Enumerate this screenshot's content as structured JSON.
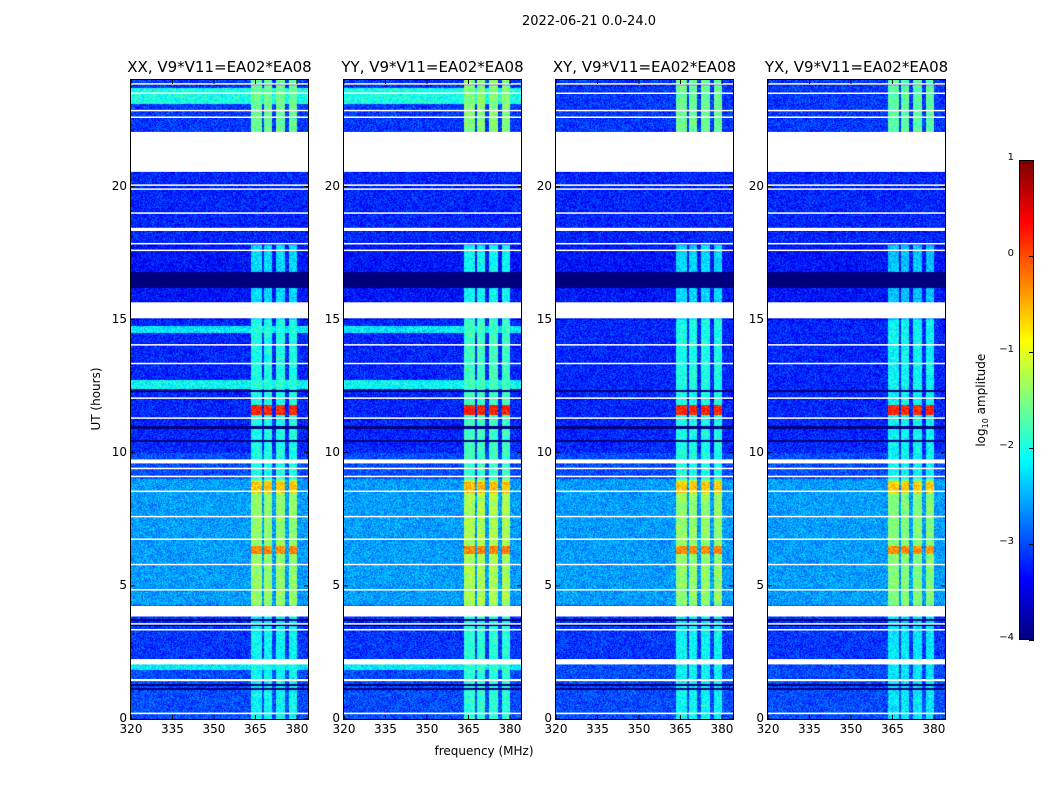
{
  "chart_data": {
    "type": "heatmap",
    "title": "2022-06-21 0.0-24.0",
    "xlabel": "frequency (MHz)",
    "ylabel": "UT (hours)",
    "xlim": [
      320,
      384
    ],
    "ylim": [
      0,
      24
    ],
    "xticks": [
      320,
      335,
      350,
      365,
      380
    ],
    "yticks": [
      0,
      5,
      10,
      15,
      20
    ],
    "panels": [
      {
        "title": "XX, V9*V11=EA02*EA08",
        "rfi_gain": 1.0,
        "parallel_hand": true
      },
      {
        "title": "YY, V9*V11=EA02*EA08",
        "rfi_gain": 1.1,
        "parallel_hand": true
      },
      {
        "title": "XY, V9*V11=EA02*EA08",
        "rfi_gain": 1.0,
        "parallel_hand": false
      },
      {
        "title": "YX, V9*V11=EA02*EA08",
        "rfi_gain": 0.95,
        "parallel_hand": false
      }
    ],
    "colorbar": {
      "label_main": "log",
      "label_sub": "10",
      "label_rest": " amplitude",
      "colormap": "jet",
      "range": [
        -4,
        1
      ],
      "ticks": [
        1,
        0,
        -1,
        -2,
        -3,
        -4
      ]
    },
    "background_log_amplitude": [
      {
        "hours": [
          0,
          2.2
        ],
        "value": -3.0
      },
      {
        "hours": [
          2.2,
          4.3
        ],
        "value": -3.1
      },
      {
        "hours": [
          4.3,
          9.0
        ],
        "value": -2.6
      },
      {
        "hours": [
          9.0,
          10.0
        ],
        "value": -3.0
      },
      {
        "hours": [
          10.0,
          15.0
        ],
        "value": -3.2
      },
      {
        "hours": [
          15.0,
          17.8
        ],
        "value": -3.3
      },
      {
        "hours": [
          17.8,
          20.6
        ],
        "value": -3.2
      },
      {
        "hours": [
          20.6,
          24
        ],
        "value": -3.1
      }
    ],
    "parallel_hand_bright_rows": [
      {
        "hours": [
          1.85,
          2.05
        ],
        "value": -2.2
      },
      {
        "hours": [
          12.4,
          12.75
        ],
        "value": -2.1
      },
      {
        "hours": [
          14.5,
          14.75
        ],
        "value": -2.2
      },
      {
        "hours": [
          23.1,
          23.7
        ],
        "value": -2.0
      }
    ],
    "dark_rows_hours": [
      [
        1.08,
        1.15
      ],
      [
        1.25,
        1.3
      ],
      [
        3.48,
        3.55
      ],
      [
        3.68,
        3.75
      ],
      [
        10.4,
        10.48
      ],
      [
        10.88,
        11.02
      ],
      [
        12.28,
        12.35
      ],
      [
        16.2,
        16.8
      ],
      [
        23.8,
        23.85
      ]
    ],
    "flagged_hours": [
      [
        0.18,
        0.24
      ],
      [
        1.42,
        1.5
      ],
      [
        2.05,
        2.25
      ],
      [
        3.33,
        3.38
      ],
      [
        3.55,
        3.6
      ],
      [
        3.85,
        4.25
      ],
      [
        4.83,
        4.88
      ],
      [
        5.78,
        5.83
      ],
      [
        6.73,
        6.78
      ],
      [
        7.58,
        7.63
      ],
      [
        8.53,
        8.58
      ],
      [
        9.08,
        9.14
      ],
      [
        9.38,
        9.44
      ],
      [
        9.6,
        9.75
      ],
      [
        11.28,
        11.33
      ],
      [
        12.03,
        12.08
      ],
      [
        13.33,
        13.38
      ],
      [
        14.03,
        14.08
      ],
      [
        15.05,
        15.65
      ],
      [
        17.58,
        17.63
      ],
      [
        17.83,
        17.88
      ],
      [
        18.33,
        18.45
      ],
      [
        18.98,
        19.03
      ],
      [
        19.88,
        19.93
      ],
      [
        20.03,
        20.08
      ],
      [
        20.55,
        22.05
      ],
      [
        22.58,
        22.63
      ],
      [
        22.83,
        22.88
      ],
      [
        23.48,
        23.53
      ],
      [
        23.83,
        23.88
      ]
    ],
    "rfi_channels_mhz": [
      [
        363.5,
        367.2
      ],
      [
        368.2,
        371.0
      ],
      [
        372.6,
        375.8
      ],
      [
        377.0,
        380.0
      ]
    ],
    "rfi_log_amplitude": [
      {
        "hours": [
          0,
          4.3
        ],
        "value": -2.1
      },
      {
        "hours": [
          4.3,
          9.0
        ],
        "value": -1.4
      },
      {
        "hours": [
          6.2,
          6.5
        ],
        "value": -0.3
      },
      {
        "hours": [
          8.5,
          8.9
        ],
        "value": -0.6
      },
      {
        "hours": [
          9.0,
          15.0
        ],
        "value": -2.0
      },
      {
        "hours": [
          11.4,
          11.8
        ],
        "value": 0.2
      },
      {
        "hours": [
          15.0,
          17.8
        ],
        "value": -2.3
      },
      {
        "hours": [
          22.0,
          24
        ],
        "value": -1.6
      }
    ]
  }
}
